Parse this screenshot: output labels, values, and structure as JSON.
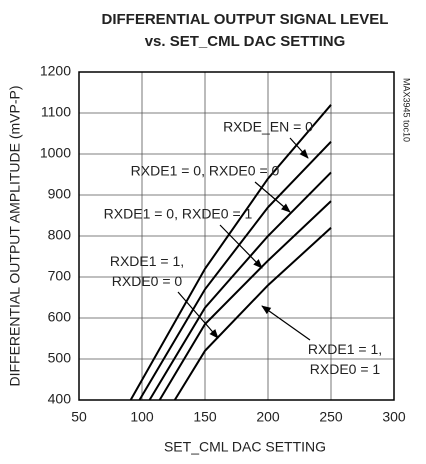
{
  "chart_data": {
    "type": "line",
    "title": [
      "DIFFERENTIAL OUTPUT SIGNAL LEVEL",
      "vs. SET_CML DAC SETTING"
    ],
    "xlabel": "SET_CML DAC SETTING",
    "ylabel": "DIFFERENTIAL OUTPUT AMPLITUDE (mVP-P)",
    "annotation": "MAX3945 toc10",
    "xlim": [
      50,
      300
    ],
    "xticks": [
      50,
      100,
      150,
      200,
      250,
      300
    ],
    "ylim": [
      400,
      1200
    ],
    "yticks": [
      400,
      500,
      600,
      700,
      800,
      900,
      1000,
      1100,
      1200
    ],
    "grid": true,
    "series": [
      {
        "name": "RXDE_EN = 0",
        "color": "#000000",
        "x": [
          91,
          150,
          200,
          250
        ],
        "values": [
          400,
          720,
          940,
          1120
        ]
      },
      {
        "name": "RXDE1 = 0, RXDE0 = 0",
        "color": "#000000",
        "x": [
          98,
          150,
          200,
          250
        ],
        "values": [
          400,
          670,
          870,
          1030
        ]
      },
      {
        "name": "RXDE1 = 0, RXDE0 = 1",
        "color": "#000000",
        "x": [
          106,
          150,
          200,
          250
        ],
        "values": [
          400,
          625,
          800,
          955
        ]
      },
      {
        "name": "RXDE1 = 1, RXDE0 = 0",
        "color": "#000000",
        "x": [
          114,
          150,
          200,
          250
        ],
        "values": [
          400,
          585,
          740,
          885
        ]
      },
      {
        "name": "RXDE1 = 1, RXDE0 = 1",
        "color": "#000000",
        "x": [
          126,
          150,
          200,
          250
        ],
        "values": [
          400,
          520,
          680,
          820
        ]
      }
    ]
  }
}
